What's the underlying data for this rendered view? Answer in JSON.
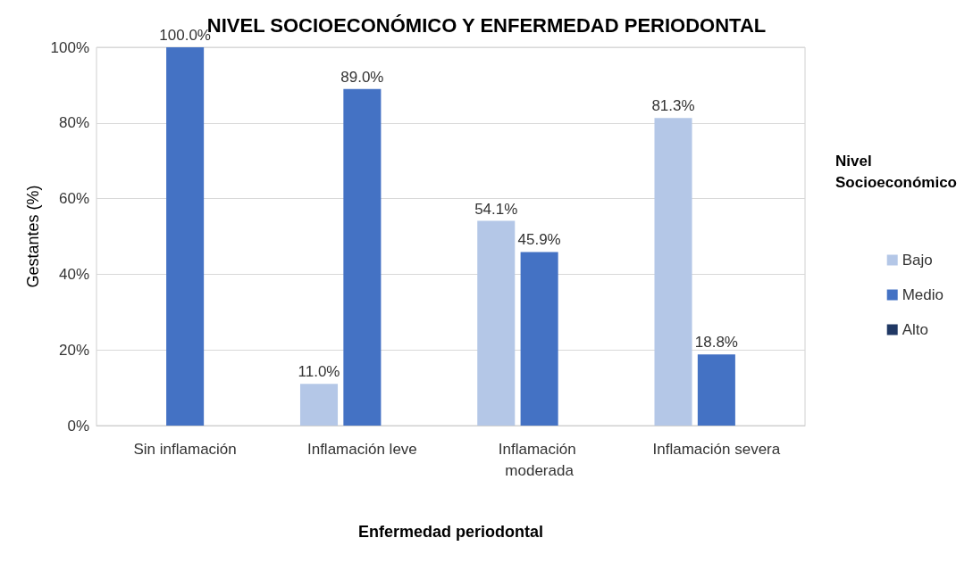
{
  "chart_data": {
    "type": "bar",
    "title": "NIVEL SOCIOECONÓMICO Y ENFERMEDAD PERIODONTAL",
    "xlabel": "Enfermedad periodontal",
    "ylabel": "Gestantes (%)",
    "legend_title": "Nivel Socioeconómico",
    "categories": [
      "Sin inflamación",
      "Inflamación leve",
      "Inflamación moderada",
      "Inflamación severa"
    ],
    "series": [
      {
        "name": "Bajo",
        "color": "#b4c7e7",
        "values": [
          0,
          11.0,
          54.1,
          81.3
        ],
        "value_labels": [
          null,
          "11.0%",
          "54.1%",
          "81.3%"
        ]
      },
      {
        "name": "Medio",
        "color": "#4472c4",
        "values": [
          100.0,
          89.0,
          45.9,
          18.8
        ],
        "value_labels": [
          "100.0%",
          "89.0%",
          "45.9%",
          "18.8%"
        ]
      },
      {
        "name": "Alto",
        "color": "#203864",
        "values": [
          0,
          0,
          0,
          0
        ],
        "value_labels": [
          null,
          null,
          null,
          null
        ]
      }
    ],
    "ylim": [
      0,
      100
    ],
    "yticks": [
      {
        "value": 0,
        "label": "0%"
      },
      {
        "value": 20,
        "label": "20%"
      },
      {
        "value": 40,
        "label": "40%"
      },
      {
        "value": 60,
        "label": "60%"
      },
      {
        "value": 80,
        "label": "80%"
      },
      {
        "value": 100,
        "label": "100%"
      }
    ],
    "grid": "y",
    "legend": "right"
  }
}
